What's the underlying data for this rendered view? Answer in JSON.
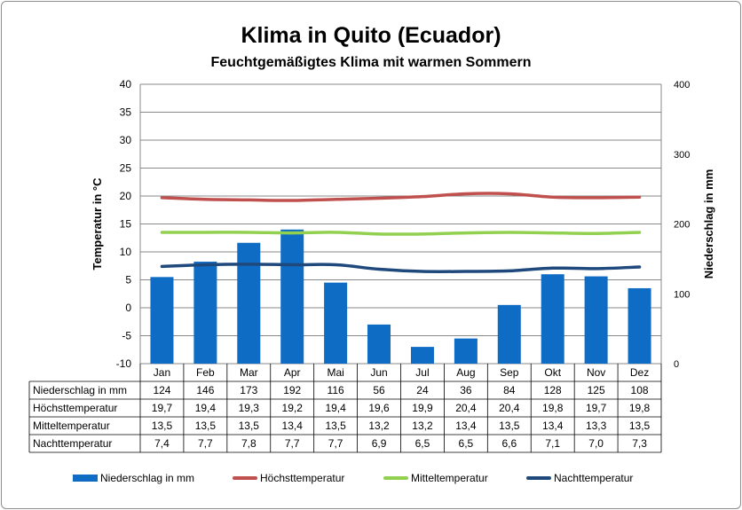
{
  "title": "Klima in Quito (Ecuador)",
  "subtitle": "Feuchtgemäßigtes Klima mit warmen Sommern",
  "chart_data": {
    "type": "bar",
    "title": "Klima in Quito (Ecuador)",
    "subtitle": "Feuchtgemäßigtes Klima mit warmen Sommern",
    "categories": [
      "Jan",
      "Feb",
      "Mar",
      "Apr",
      "Mai",
      "Jun",
      "Jul",
      "Aug",
      "Sep",
      "Okt",
      "Nov",
      "Dez"
    ],
    "ylabel": "Temperatur in °C",
    "y2label": "Niederschlag in mm",
    "ylim": [
      -10,
      40
    ],
    "y2lim": [
      0,
      400
    ],
    "yticks": [
      "40",
      "35",
      "30",
      "25",
      "20",
      "15",
      "10",
      "5",
      "0",
      "-5",
      "-10"
    ],
    "y2ticks": [
      "400",
      "300",
      "200",
      "100",
      "0"
    ],
    "grid": true,
    "legend_position": "bottom",
    "series": [
      {
        "name": "Niederschlag in mm",
        "type": "bar",
        "axis": "right",
        "color": "#0e6cc4",
        "values": [
          124,
          146,
          173,
          192,
          116,
          56,
          24,
          36,
          84,
          128,
          125,
          108
        ],
        "labels": [
          "124",
          "146",
          "173",
          "192",
          "116",
          "56",
          "24",
          "36",
          "84",
          "128",
          "125",
          "108"
        ]
      },
      {
        "name": "Höchsttemperatur",
        "type": "line",
        "axis": "left",
        "color": "#c0504d",
        "values": [
          19.7,
          19.4,
          19.3,
          19.2,
          19.4,
          19.6,
          19.9,
          20.4,
          20.4,
          19.8,
          19.7,
          19.8
        ],
        "labels": [
          "19,7",
          "19,4",
          "19,3",
          "19,2",
          "19,4",
          "19,6",
          "19,9",
          "20,4",
          "20,4",
          "19,8",
          "19,7",
          "19,8"
        ]
      },
      {
        "name": "Mitteltemperatur",
        "type": "line",
        "axis": "left",
        "color": "#92d050",
        "values": [
          13.5,
          13.5,
          13.5,
          13.4,
          13.5,
          13.2,
          13.2,
          13.4,
          13.5,
          13.4,
          13.3,
          13.5
        ],
        "labels": [
          "13,5",
          "13,5",
          "13,5",
          "13,4",
          "13,5",
          "13,2",
          "13,2",
          "13,4",
          "13,5",
          "13,4",
          "13,3",
          "13,5"
        ]
      },
      {
        "name": "Nachttemperatur",
        "type": "line",
        "axis": "left",
        "color": "#1f497d",
        "values": [
          7.4,
          7.7,
          7.8,
          7.7,
          7.7,
          6.9,
          6.5,
          6.5,
          6.6,
          7.1,
          7.0,
          7.3
        ],
        "labels": [
          "7,4",
          "7,7",
          "7,8",
          "7,7",
          "7,7",
          "6,9",
          "6,5",
          "6,5",
          "6,6",
          "7,1",
          "7,0",
          "7,3"
        ]
      }
    ]
  }
}
